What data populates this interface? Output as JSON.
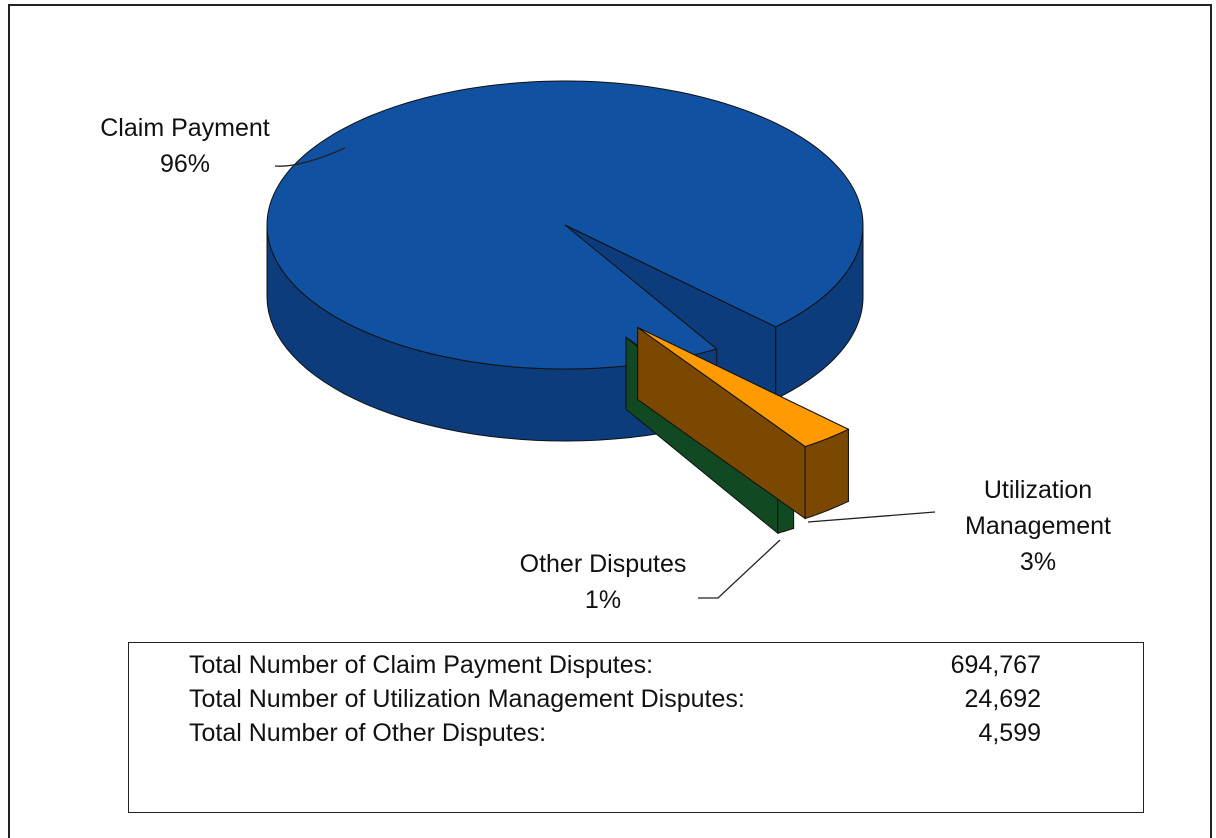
{
  "chart_data": {
    "type": "pie3d",
    "categories": [
      "Claim Payment",
      "Utilization Management",
      "Other Disputes"
    ],
    "values": [
      96,
      3,
      1
    ],
    "value_labels": [
      "96%",
      "3%",
      "1%"
    ],
    "colors": [
      "#1151a2",
      "#ff9a00",
      "#2fae4c"
    ],
    "side_colors": [
      "#0c3c7c",
      "#7a4800",
      "#114a22"
    ],
    "exploded": [
      false,
      true,
      true
    ]
  },
  "totals": {
    "rows": [
      {
        "label": "Total Number of Claim Payment Disputes:",
        "value": "694,767"
      },
      {
        "label": "Total Number of Utilization Management Disputes:",
        "value": "24,692"
      },
      {
        "label": "Total Number of Other Disputes:",
        "value": "4,599"
      }
    ]
  }
}
